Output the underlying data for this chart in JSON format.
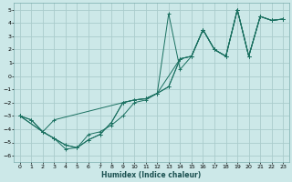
{
  "xlabel": "Humidex (Indice chaleur)",
  "bg_color": "#cce8e8",
  "grid_color": "#aacccc",
  "line_color": "#1a7060",
  "xlim": [
    -0.5,
    23.5
  ],
  "ylim": [
    -6.5,
    5.5
  ],
  "xticks": [
    0,
    1,
    2,
    3,
    4,
    5,
    6,
    7,
    8,
    9,
    10,
    11,
    12,
    13,
    14,
    15,
    16,
    17,
    18,
    19,
    20,
    21,
    22,
    23
  ],
  "yticks": [
    -6,
    -5,
    -4,
    -3,
    -2,
    -1,
    0,
    1,
    2,
    3,
    4,
    5
  ],
  "line1_x": [
    0,
    1,
    2,
    3,
    4,
    5,
    6,
    7,
    8,
    9,
    10,
    11,
    12,
    13,
    14,
    15,
    16,
    17,
    18,
    19,
    20,
    21,
    22,
    23
  ],
  "line1_y": [
    -3.0,
    -3.3,
    -4.2,
    -4.7,
    -5.2,
    -5.4,
    -4.8,
    -4.4,
    -3.5,
    -2.0,
    -1.8,
    -1.7,
    -1.3,
    -0.8,
    1.3,
    1.5,
    3.5,
    2.0,
    1.5,
    5.0,
    1.5,
    4.5,
    4.2,
    4.3
  ],
  "line2_x": [
    0,
    1,
    2,
    3,
    4,
    5,
    6,
    7,
    8,
    9,
    10,
    11,
    12,
    13,
    14,
    15,
    16,
    17,
    18,
    19,
    20,
    21,
    22,
    23
  ],
  "line2_y": [
    -3.0,
    -3.3,
    -4.2,
    -4.7,
    -5.5,
    -5.4,
    -4.8,
    -4.4,
    -3.5,
    -2.0,
    -1.8,
    -1.7,
    -1.3,
    4.7,
    0.5,
    1.5,
    3.5,
    2.0,
    1.5,
    5.0,
    1.5,
    4.5,
    4.2,
    4.3
  ],
  "line3_x": [
    0,
    2,
    3,
    4,
    5,
    6,
    7,
    8,
    9,
    10,
    11,
    12,
    14,
    15,
    16,
    17,
    18,
    19,
    20,
    21,
    22,
    23
  ],
  "line3_y": [
    -3.0,
    -4.2,
    -4.7,
    -5.2,
    -5.4,
    -4.4,
    -4.2,
    -3.7,
    -3.0,
    -2.0,
    -1.8,
    -1.3,
    1.3,
    1.5,
    3.5,
    2.0,
    1.5,
    5.0,
    1.5,
    4.5,
    4.2,
    4.3
  ],
  "line4_x": [
    0,
    2,
    3,
    9,
    10,
    11,
    12,
    13,
    14,
    15,
    16,
    17,
    18,
    19,
    20,
    21,
    22,
    23
  ],
  "line4_y": [
    -3.0,
    -4.2,
    -3.3,
    -2.0,
    -1.8,
    -1.7,
    -1.3,
    -0.8,
    1.3,
    1.5,
    3.5,
    2.0,
    1.5,
    5.0,
    1.5,
    4.5,
    4.2,
    4.3
  ]
}
